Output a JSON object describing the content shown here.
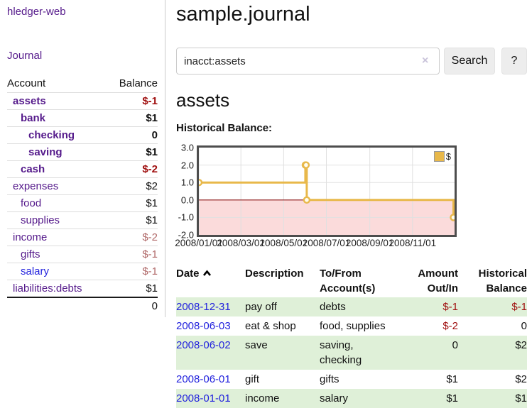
{
  "sidebar": {
    "brand": "hledger-web",
    "journal_link": "Journal",
    "accounts": {
      "headers": {
        "account": "Account",
        "balance": "Balance"
      },
      "rows": [
        {
          "name": "assets",
          "balance": "$-1"
        },
        {
          "name": "bank",
          "balance": "$1"
        },
        {
          "name": "checking",
          "balance": "0"
        },
        {
          "name": "saving",
          "balance": "$1"
        },
        {
          "name": "cash",
          "balance": "$-2"
        },
        {
          "name": "expenses",
          "balance": "$2"
        },
        {
          "name": "food",
          "balance": "$1"
        },
        {
          "name": "supplies",
          "balance": "$1"
        },
        {
          "name": "income",
          "balance": "$-2"
        },
        {
          "name": "gifts",
          "balance": "$-1"
        },
        {
          "name": "salary",
          "balance": "$-1"
        },
        {
          "name": "liabilities:debts",
          "balance": "$1"
        }
      ],
      "total": "0"
    }
  },
  "header": {
    "title": "sample.journal"
  },
  "search": {
    "value": "inacct:assets",
    "clear_icon": "×",
    "search_label": "Search",
    "help_label": "?"
  },
  "account_page": {
    "heading": "assets"
  },
  "chart_data": {
    "type": "line",
    "step": true,
    "title": "Historical Balance:",
    "x_range": [
      "2008-01-01",
      "2008-12-31"
    ],
    "ylim": [
      -2,
      3
    ],
    "yticks": [
      3,
      2,
      1,
      0,
      -1,
      -2
    ],
    "ytick_labels": [
      "3.0",
      "2.0",
      "1.0",
      "0.0",
      "-1.0",
      "-2.0"
    ],
    "xticks": [
      "2008-01-01",
      "2008-03-01",
      "2008-05-01",
      "2008-07-01",
      "2008-09-01",
      "2008-11-01"
    ],
    "xtick_labels": [
      "2008/01/01",
      "2008/03/01",
      "2008/05/01",
      "2008/07/01",
      "2008/09/01",
      "2008/11/01"
    ],
    "ygrid": [
      2,
      1,
      -1
    ],
    "series": [
      {
        "name": "$",
        "points": [
          [
            "2008-01-01",
            1
          ],
          [
            "2008-06-01",
            2
          ],
          [
            "2008-06-02",
            2
          ],
          [
            "2008-06-03",
            0
          ],
          [
            "2008-12-31",
            -1
          ]
        ]
      }
    ],
    "legend_position": "top-right",
    "grid": true,
    "colors": {
      "line": "#e8b84a",
      "marker_fill": "#fffdf0",
      "negative_fill": "#fbdbdb",
      "zero_line": "#8b1616",
      "grid": "#e0e0e0",
      "border": "#4d4d4d"
    }
  },
  "transactions": {
    "headers": {
      "date": "Date",
      "description": "Description",
      "tofrom_line1": "To/From",
      "tofrom_line2": "Account(s)",
      "amount_line1": "Amount",
      "amount_line2": "Out/In",
      "balance_line1": "Historical",
      "balance_line2": "Balance"
    },
    "rows": [
      {
        "date": "2008-12-31",
        "description": "pay off",
        "accounts": "debts",
        "amount": "$-1",
        "balance": "$-1"
      },
      {
        "date": "2008-06-03",
        "description": "eat & shop",
        "accounts": "food, supplies",
        "amount": "$-2",
        "balance": "0"
      },
      {
        "date": "2008-06-02",
        "description": "save",
        "accounts": "saving, checking",
        "amount": "0",
        "balance": "$2"
      },
      {
        "date": "2008-06-01",
        "description": "gift",
        "accounts": "gifts",
        "amount": "$1",
        "balance": "$2"
      },
      {
        "date": "2008-01-01",
        "description": "income",
        "accounts": "salary",
        "amount": "$1",
        "balance": "$1"
      }
    ]
  }
}
